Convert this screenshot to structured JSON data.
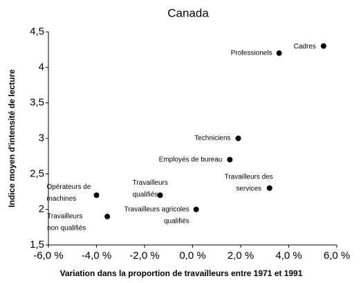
{
  "chart_data": {
    "type": "scatter",
    "title": "Canada",
    "x_label": "Variation dans la proportion de travailleurs entre 1971 et 1991",
    "y_label": "Indice moyen d'intensité de lecture",
    "x": [
      5.45,
      3.6,
      1.9,
      1.55,
      3.2,
      0.15,
      -1.35,
      -4.0,
      -3.55
    ],
    "values": [
      4.3,
      4.2,
      3.0,
      2.7,
      2.3,
      2.0,
      2.2,
      2.2,
      1.9
    ],
    "point_labels": [
      [
        "Cadres"
      ],
      [
        "Professionels"
      ],
      [
        "Techniciens"
      ],
      [
        "Employés de bureau"
      ],
      [
        "Travailleurs des",
        "services"
      ],
      [
        "Travailleurs agricoles",
        "qualifiés"
      ],
      [
        "Travailleurs",
        "qualifiés"
      ],
      [
        "Opérateurs de",
        "machines"
      ],
      [
        "Travailleurs",
        "non qualifiés"
      ]
    ],
    "color": "#000000",
    "xlim": [
      -6,
      6
    ],
    "xticks": [
      {
        "value": -6,
        "label": "-6,0 %"
      },
      {
        "value": -4,
        "label": "-4,0 %"
      },
      {
        "value": -2,
        "label": "-2,0 %"
      },
      {
        "value": 0,
        "label": "0,0 %"
      },
      {
        "value": 2,
        "label": "2,0 %"
      },
      {
        "value": 4,
        "label": "4,0 %"
      },
      {
        "value": 6,
        "label": "6,0 %"
      }
    ],
    "ylim": [
      1.5,
      4.5
    ],
    "yticks": [
      {
        "value": 1.5,
        "label": "1,5"
      },
      2,
      {
        "value": 2.5,
        "label": "2,5"
      },
      3,
      {
        "value": 3.5,
        "label": "3,5"
      },
      4,
      {
        "value": 4.5,
        "label": "4,5"
      }
    ],
    "grid": false
  }
}
